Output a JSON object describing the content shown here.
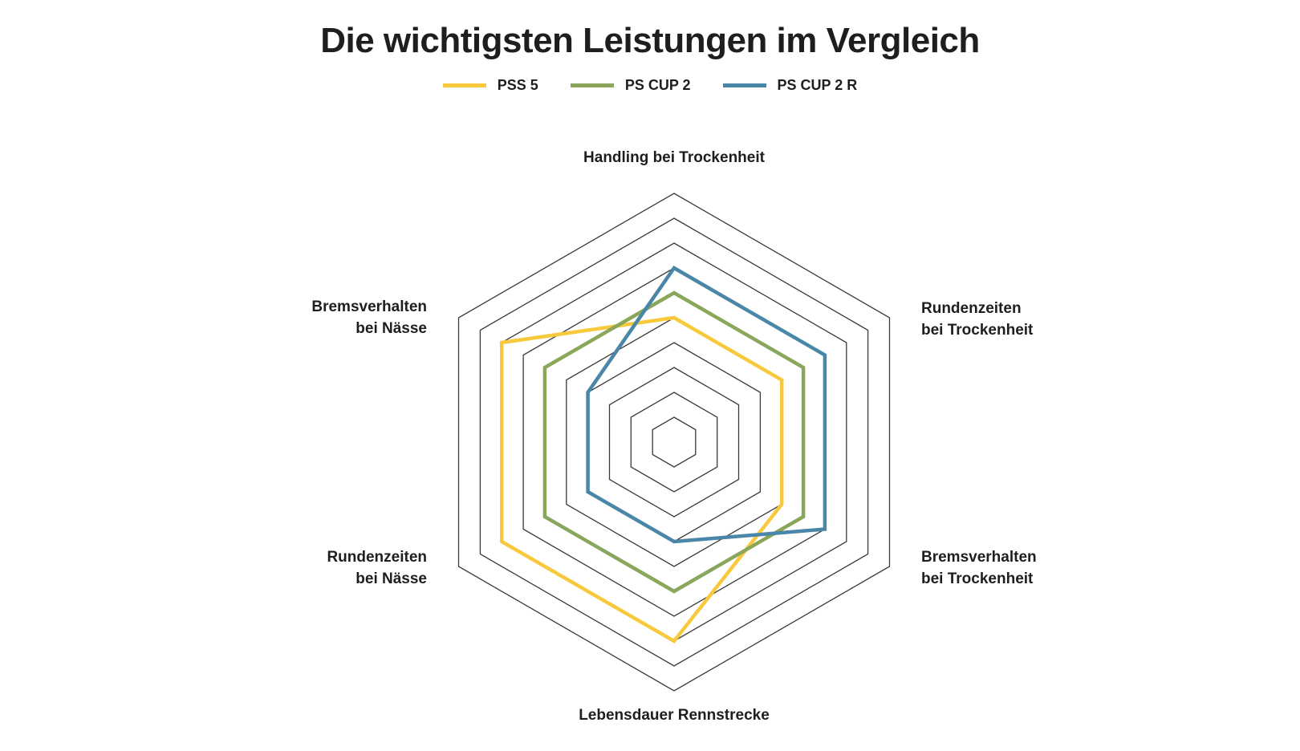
{
  "chart_data": {
    "type": "radar",
    "title": "Die wichtigsten Leistungen im Vergleich",
    "axes": [
      "Handling bei Trockenheit",
      "Rundenzeiten\nbei Trockenheit",
      "Bremsverhalten\nbei Trockenheit",
      "Lebensdauer Rennstrecke",
      "Rundenzeiten\nbei Nässe",
      "Bremsverhalten\nbei Nässe"
    ],
    "rmin": 0,
    "rmax": 10,
    "rings": 10,
    "legend_position": "top-center",
    "series": [
      {
        "name": "PSS 5",
        "color": "#f8c93c",
        "values": [
          5,
          5,
          5,
          8,
          8,
          8
        ]
      },
      {
        "name": "PS CUP 2",
        "color": "#8aa65a",
        "values": [
          6,
          6,
          6,
          6,
          6,
          6
        ]
      },
      {
        "name": "PS CUP 2 R",
        "color": "#4a86a8",
        "values": [
          7,
          7,
          7,
          4,
          4,
          4
        ]
      }
    ]
  }
}
